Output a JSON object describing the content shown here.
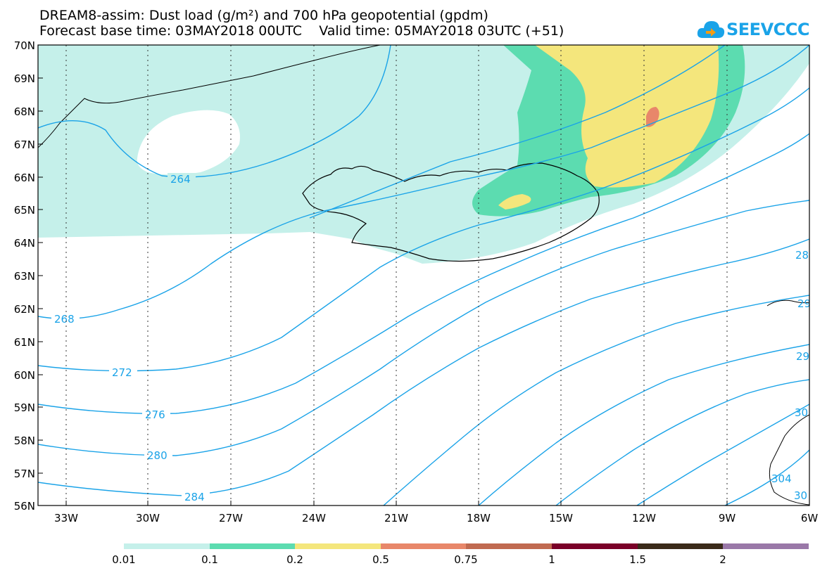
{
  "header": {
    "title_line1": "DREAM8-assim: Dust load (g/m²) and 700 hPa geopotential (gpdm)",
    "title_line2": "Forecast base time: 03MAY2018 00UTC    Valid time: 05MAY2018 03UTC (+51)"
  },
  "logo": {
    "text": "SEEVCCC",
    "icon": "cloud-logo-icon",
    "color": "#1aa3e8"
  },
  "map": {
    "lon_labels": [
      "33W",
      "30W",
      "27W",
      "24W",
      "21W",
      "18W",
      "15W",
      "12W",
      "9W",
      "6W"
    ],
    "lat_labels": [
      "70N",
      "69N",
      "68N",
      "67N",
      "66N",
      "65N",
      "64N",
      "63N",
      "62N",
      "61N",
      "60N",
      "59N",
      "58N",
      "57N",
      "56N"
    ],
    "contour_labels": [
      "264",
      "268",
      "272",
      "276",
      "280",
      "284",
      "28",
      "29",
      "29",
      "30",
      "304",
      "30"
    ],
    "colors": {
      "contour": "#1aa3e8",
      "coast": "#000000"
    }
  },
  "legend": {
    "labels": [
      "0.01",
      "0.1",
      "0.2",
      "0.5",
      "0.75",
      "1",
      "1.5",
      "2"
    ],
    "colors": [
      "#c5f0ea",
      "#5cdcb0",
      "#f4e67c",
      "#e8876a",
      "#c06a50",
      "#7a0028",
      "#3a2a1a",
      "#9a78a8"
    ]
  }
}
